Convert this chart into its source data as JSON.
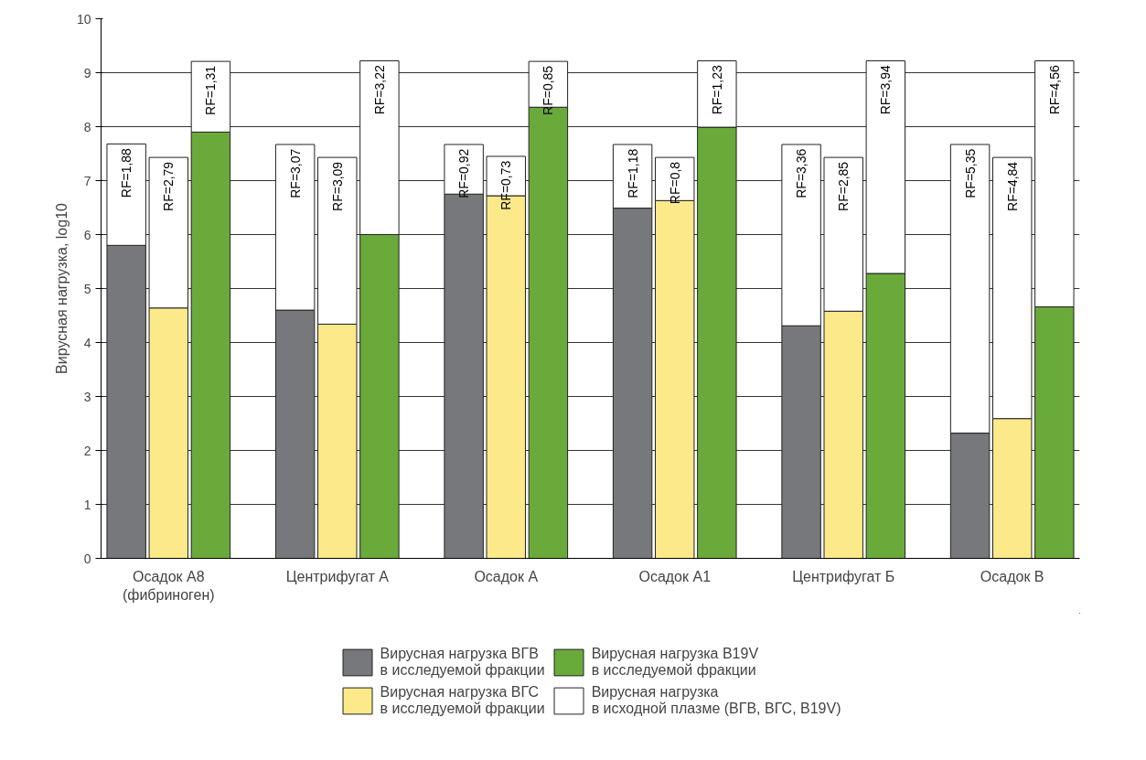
{
  "chart_data": {
    "type": "bar",
    "stacked": true,
    "ylabel": "Вирусная нагрузка, log10",
    "categories": [
      null,
      "Осадок А8\n(фибриноген)",
      null,
      null,
      null,
      "Центрифугат А",
      null,
      null,
      null,
      "Осадок А",
      null,
      null,
      null,
      "Осадок А1",
      null,
      null,
      null,
      "Центрифугат Б",
      null,
      null,
      null,
      "Осадок В",
      null
    ],
    "series": [
      {
        "name": "Вирусная нагрузка ВГВ\nв исследуемой фракции",
        "color": "#77787b",
        "values": [
          5.8,
          null,
          null,
          null,
          4.6,
          null,
          null,
          null,
          6.75,
          null,
          null,
          null,
          6.49,
          null,
          null,
          null,
          4.31,
          null,
          null,
          null,
          2.32,
          null,
          null
        ]
      },
      {
        "name": "Вирусная нагрузка ВГС\nв исследуемой фракции",
        "color": "#fce98a",
        "values": [
          null,
          4.64,
          null,
          null,
          null,
          4.34,
          null,
          null,
          null,
          6.72,
          null,
          null,
          null,
          6.63,
          null,
          null,
          null,
          4.58,
          null,
          null,
          null,
          2.59,
          null
        ]
      },
      {
        "name": "Вирусная нагрузка B19V\nв исследуемой фракции",
        "color": "#6aaa3a",
        "values": [
          null,
          null,
          7.9,
          null,
          null,
          null,
          6.0,
          null,
          null,
          null,
          8.36,
          null,
          null,
          null,
          7.99,
          null,
          null,
          null,
          5.28,
          null,
          null,
          null,
          4.66
        ]
      },
      {
        "name": "Вирусная нагрузка\nв исходной плазме (ВГВ, ВГС, B19V)",
        "color": "#ffffff",
        "values": [
          1.88,
          2.79,
          1.31,
          null,
          3.07,
          3.09,
          3.22,
          null,
          0.92,
          0.73,
          0.85,
          null,
          1.18,
          0.8,
          1.23,
          null,
          3.36,
          2.85,
          3.94,
          null,
          5.35,
          4.84,
          4.56
        ],
        "value_labels": [
          "RF=1,88",
          "RF=2,79",
          "RF=1,31",
          null,
          "RF=3,07",
          "RF=3,09",
          "RF=3,22",
          null,
          "RF=0,92",
          "RF=0,73",
          "RF=0,85",
          null,
          "RF=1,18",
          "RF=0,8",
          "RF=1,23",
          null,
          "RF=3,36",
          "RF=2,85",
          "RF=3,94",
          null,
          "RF=5,35",
          "RF=4,84",
          "RF=4,56"
        ]
      }
    ],
    "ylim": [
      0,
      10
    ],
    "yticks": [
      0,
      1,
      2,
      3,
      4,
      5,
      6,
      7,
      8,
      9,
      10
    ],
    "grid": "y",
    "legend": "bottom"
  }
}
